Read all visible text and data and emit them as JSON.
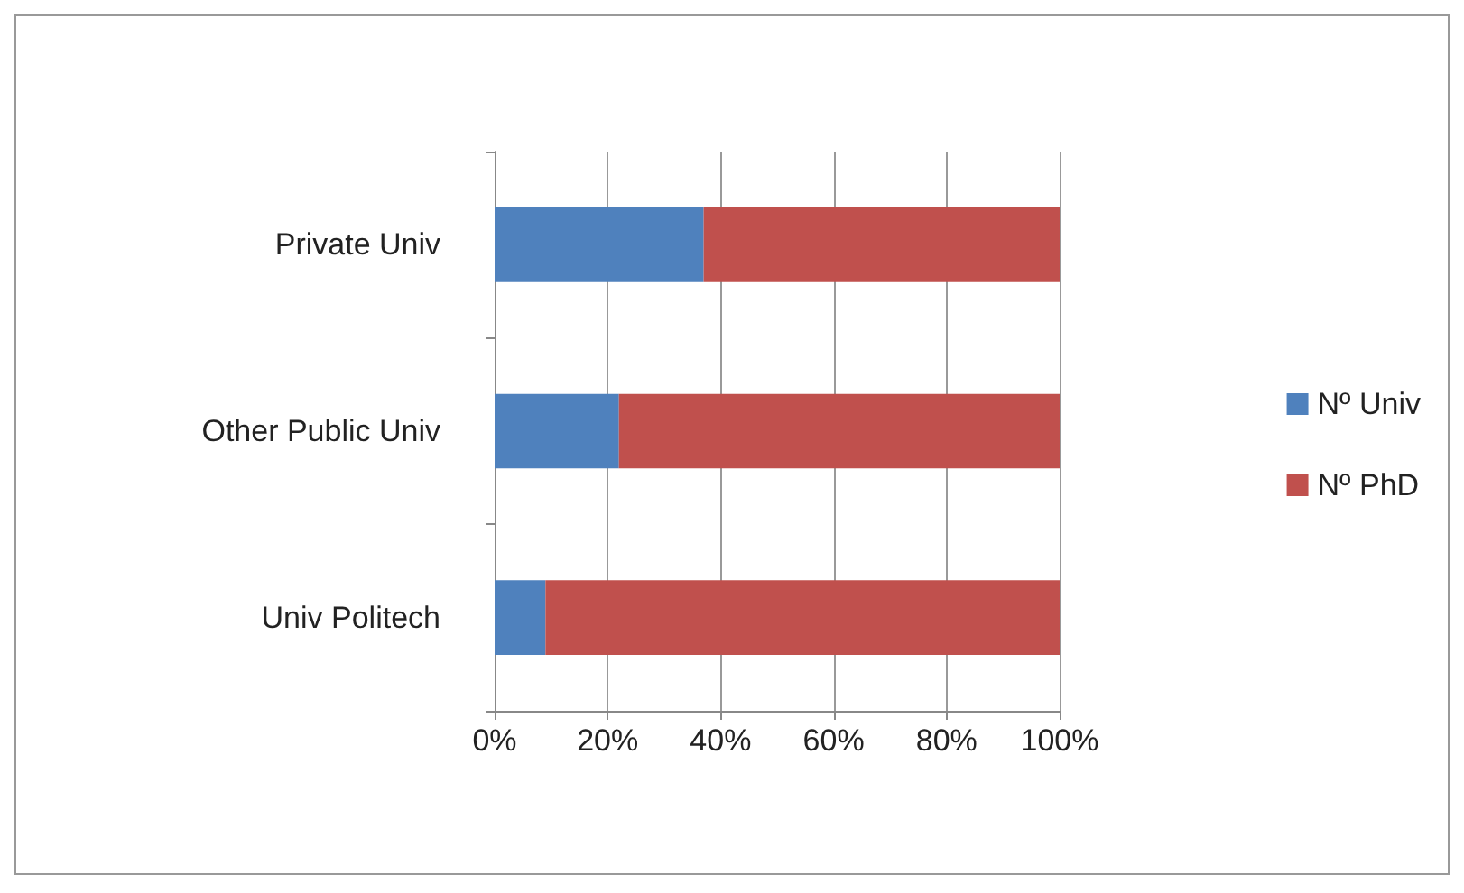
{
  "chart_data": {
    "type": "bar",
    "orientation": "horizontal",
    "stacked": true,
    "categories": [
      "Private Univ",
      "Other Public Univ",
      "Univ Politech"
    ],
    "series": [
      {
        "name": "Nº Univ",
        "color": "#4f81bd",
        "values": [
          37,
          22,
          9
        ]
      },
      {
        "name": "Nº PhD",
        "color": "#c0504d",
        "values": [
          63,
          78,
          91
        ]
      }
    ],
    "xlim": [
      0,
      100
    ],
    "xticks": [
      {
        "value": 0,
        "label": "0%"
      },
      {
        "value": 20,
        "label": "20%"
      },
      {
        "value": 40,
        "label": "40%"
      },
      {
        "value": 60,
        "label": "60%"
      },
      {
        "value": 80,
        "label": "80%"
      },
      {
        "value": 100,
        "label": "100%"
      }
    ],
    "grid": "x",
    "legend": "right"
  }
}
